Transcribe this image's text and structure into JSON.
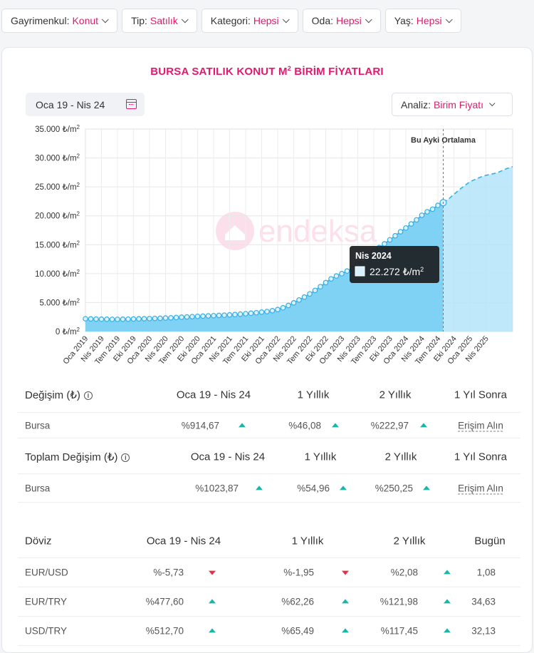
{
  "filters": [
    {
      "label": "Gayrimenkul:",
      "value": "Konut"
    },
    {
      "label": "Tip:",
      "value": "Satılık"
    },
    {
      "label": "Kategori:",
      "value": "Hepsi"
    },
    {
      "label": "Oda:",
      "value": "Hepsi"
    },
    {
      "label": "Yaş:",
      "value": "Hepsi"
    }
  ],
  "card": {
    "title": "BURSA SATILIK KONUT M",
    "title_sup": "2",
    "title_suffix": " BİRİM FİYATLARI",
    "date_range": "Oca 19 - Nis 24",
    "analiz_label": "Analiz:",
    "analiz_value": "Birim Fiyatı"
  },
  "colors": {
    "accent": "#e5176e",
    "area": "#7fd2f4",
    "line": "#36aee3",
    "forecast": "#b4e5f9",
    "up": "#1ab5a8",
    "down": "#e5304a"
  },
  "chart_data": {
    "type": "area",
    "ylim": [
      0,
      35000
    ],
    "y_ticks": [
      0,
      5000,
      10000,
      15000,
      20000,
      25000,
      30000,
      35000
    ],
    "y_unit": "₺/m",
    "y_unit_sup": "2",
    "x_tick_labels": [
      "Oca 2019",
      "Nis 2019",
      "Tem 2019",
      "Eki 2019",
      "Oca 2020",
      "Nis 2020",
      "Tem 2020",
      "Eki 2020",
      "Oca 2021",
      "Nis 2021",
      "Tem 2021",
      "Eki 2021",
      "Oca 2022",
      "Nis 2022",
      "Tem 2022",
      "Eki 2022",
      "Oca 2023",
      "Nis 2023",
      "Tem 2023",
      "Eki 2023",
      "Oca 2024",
      "Nis 2024",
      "Tem 2024",
      "Eki 2024",
      "Oca 2025",
      "Nis 2025"
    ],
    "actual_values": [
      2200,
      2180,
      2150,
      2130,
      2120,
      2110,
      2110,
      2120,
      2140,
      2160,
      2190,
      2210,
      2230,
      2260,
      2290,
      2330,
      2370,
      2420,
      2470,
      2520,
      2570,
      2620,
      2660,
      2700,
      2740,
      2780,
      2820,
      2870,
      2930,
      3000,
      3080,
      3160,
      3250,
      3350,
      3450,
      3600,
      3800,
      4100,
      4500,
      4950,
      5450,
      5950,
      6500,
      7100,
      7750,
      8450,
      9100,
      9600,
      10000,
      10450,
      10950,
      11600,
      12350,
      13100,
      13850,
      14500,
      15150,
      15850,
      16550,
      17250,
      17900,
      18600,
      19300,
      20100,
      20700,
      21150,
      21800,
      22272
    ],
    "forecast_values": [
      22272,
      22900,
      23700,
      24500,
      25200,
      25900,
      26300,
      26700,
      27000,
      27200,
      27400,
      27800,
      28200,
      28500
    ],
    "vline_label": "Bu Ayki Ortalama",
    "tooltip_title": "Nis 2024",
    "tooltip_value": "22.272 ₺/m",
    "tooltip_sup": "2",
    "watermark": "endeksa"
  },
  "table1": {
    "title": "Değişim (₺)",
    "info": "i",
    "headers": [
      "Oca 19 - Nis 24",
      "1 Yıllık",
      "2 Yıllık",
      "1 Yıl Sonra"
    ],
    "row": {
      "name": "Bursa",
      "v1": "%914,67",
      "v2": "%46,08",
      "v3": "%222,97",
      "link": "Erişim Alın"
    }
  },
  "table2": {
    "title": "Toplam Değişim (₺)",
    "info": "i",
    "headers": [
      "Oca 19 - Nis 24",
      "1 Yıllık",
      "2 Yıllık",
      "1 Yıl Sonra"
    ],
    "row": {
      "name": "Bursa",
      "v1": "%1023,87",
      "v2": "%54,96",
      "v3": "%250,25",
      "link": "Erişim Alın"
    }
  },
  "table3": {
    "title": "Döviz",
    "headers": [
      "Oca 19 - Nis 24",
      "1 Yıllık",
      "2 Yıllık",
      "Bugün"
    ],
    "rows": [
      {
        "name": "EUR/USD",
        "v1": "%-5,73",
        "d1": "down",
        "v2": "%-1,95",
        "d2": "down",
        "v3": "%2,08",
        "d3": "up",
        "today": "1,08"
      },
      {
        "name": "EUR/TRY",
        "v1": "%477,60",
        "d1": "up",
        "v2": "%62,26",
        "d2": "up",
        "v3": "%121,98",
        "d3": "up",
        "today": "34,63"
      },
      {
        "name": "USD/TRY",
        "v1": "%512,70",
        "d1": "up",
        "v2": "%65,49",
        "d2": "up",
        "v3": "%117,45",
        "d3": "up",
        "today": "32,13"
      }
    ]
  }
}
